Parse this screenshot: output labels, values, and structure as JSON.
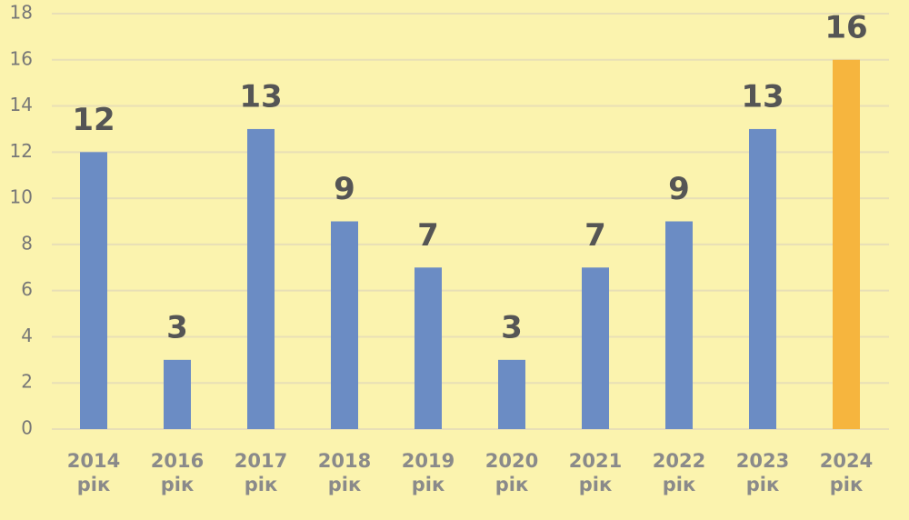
{
  "chart_data": {
    "type": "bar",
    "categories": [
      "2014 рік",
      "2016 рік",
      "2017 рік",
      "2018 рік",
      "2019 рік",
      "2020 рік",
      "2021 рік",
      "2022 рік",
      "2023 рік",
      "2024 рік"
    ],
    "values": [
      12,
      3,
      13,
      9,
      7,
      3,
      7,
      9,
      13,
      16
    ],
    "colors": [
      "#6b8cc4",
      "#6b8cc4",
      "#6b8cc4",
      "#6b8cc4",
      "#6b8cc4",
      "#6b8cc4",
      "#6b8cc4",
      "#6b8cc4",
      "#6b8cc4",
      "#f6b53e"
    ],
    "ylim": [
      0,
      18
    ],
    "yticks": [
      0,
      2,
      4,
      6,
      8,
      10,
      12,
      14,
      16,
      18
    ],
    "grid": true
  }
}
